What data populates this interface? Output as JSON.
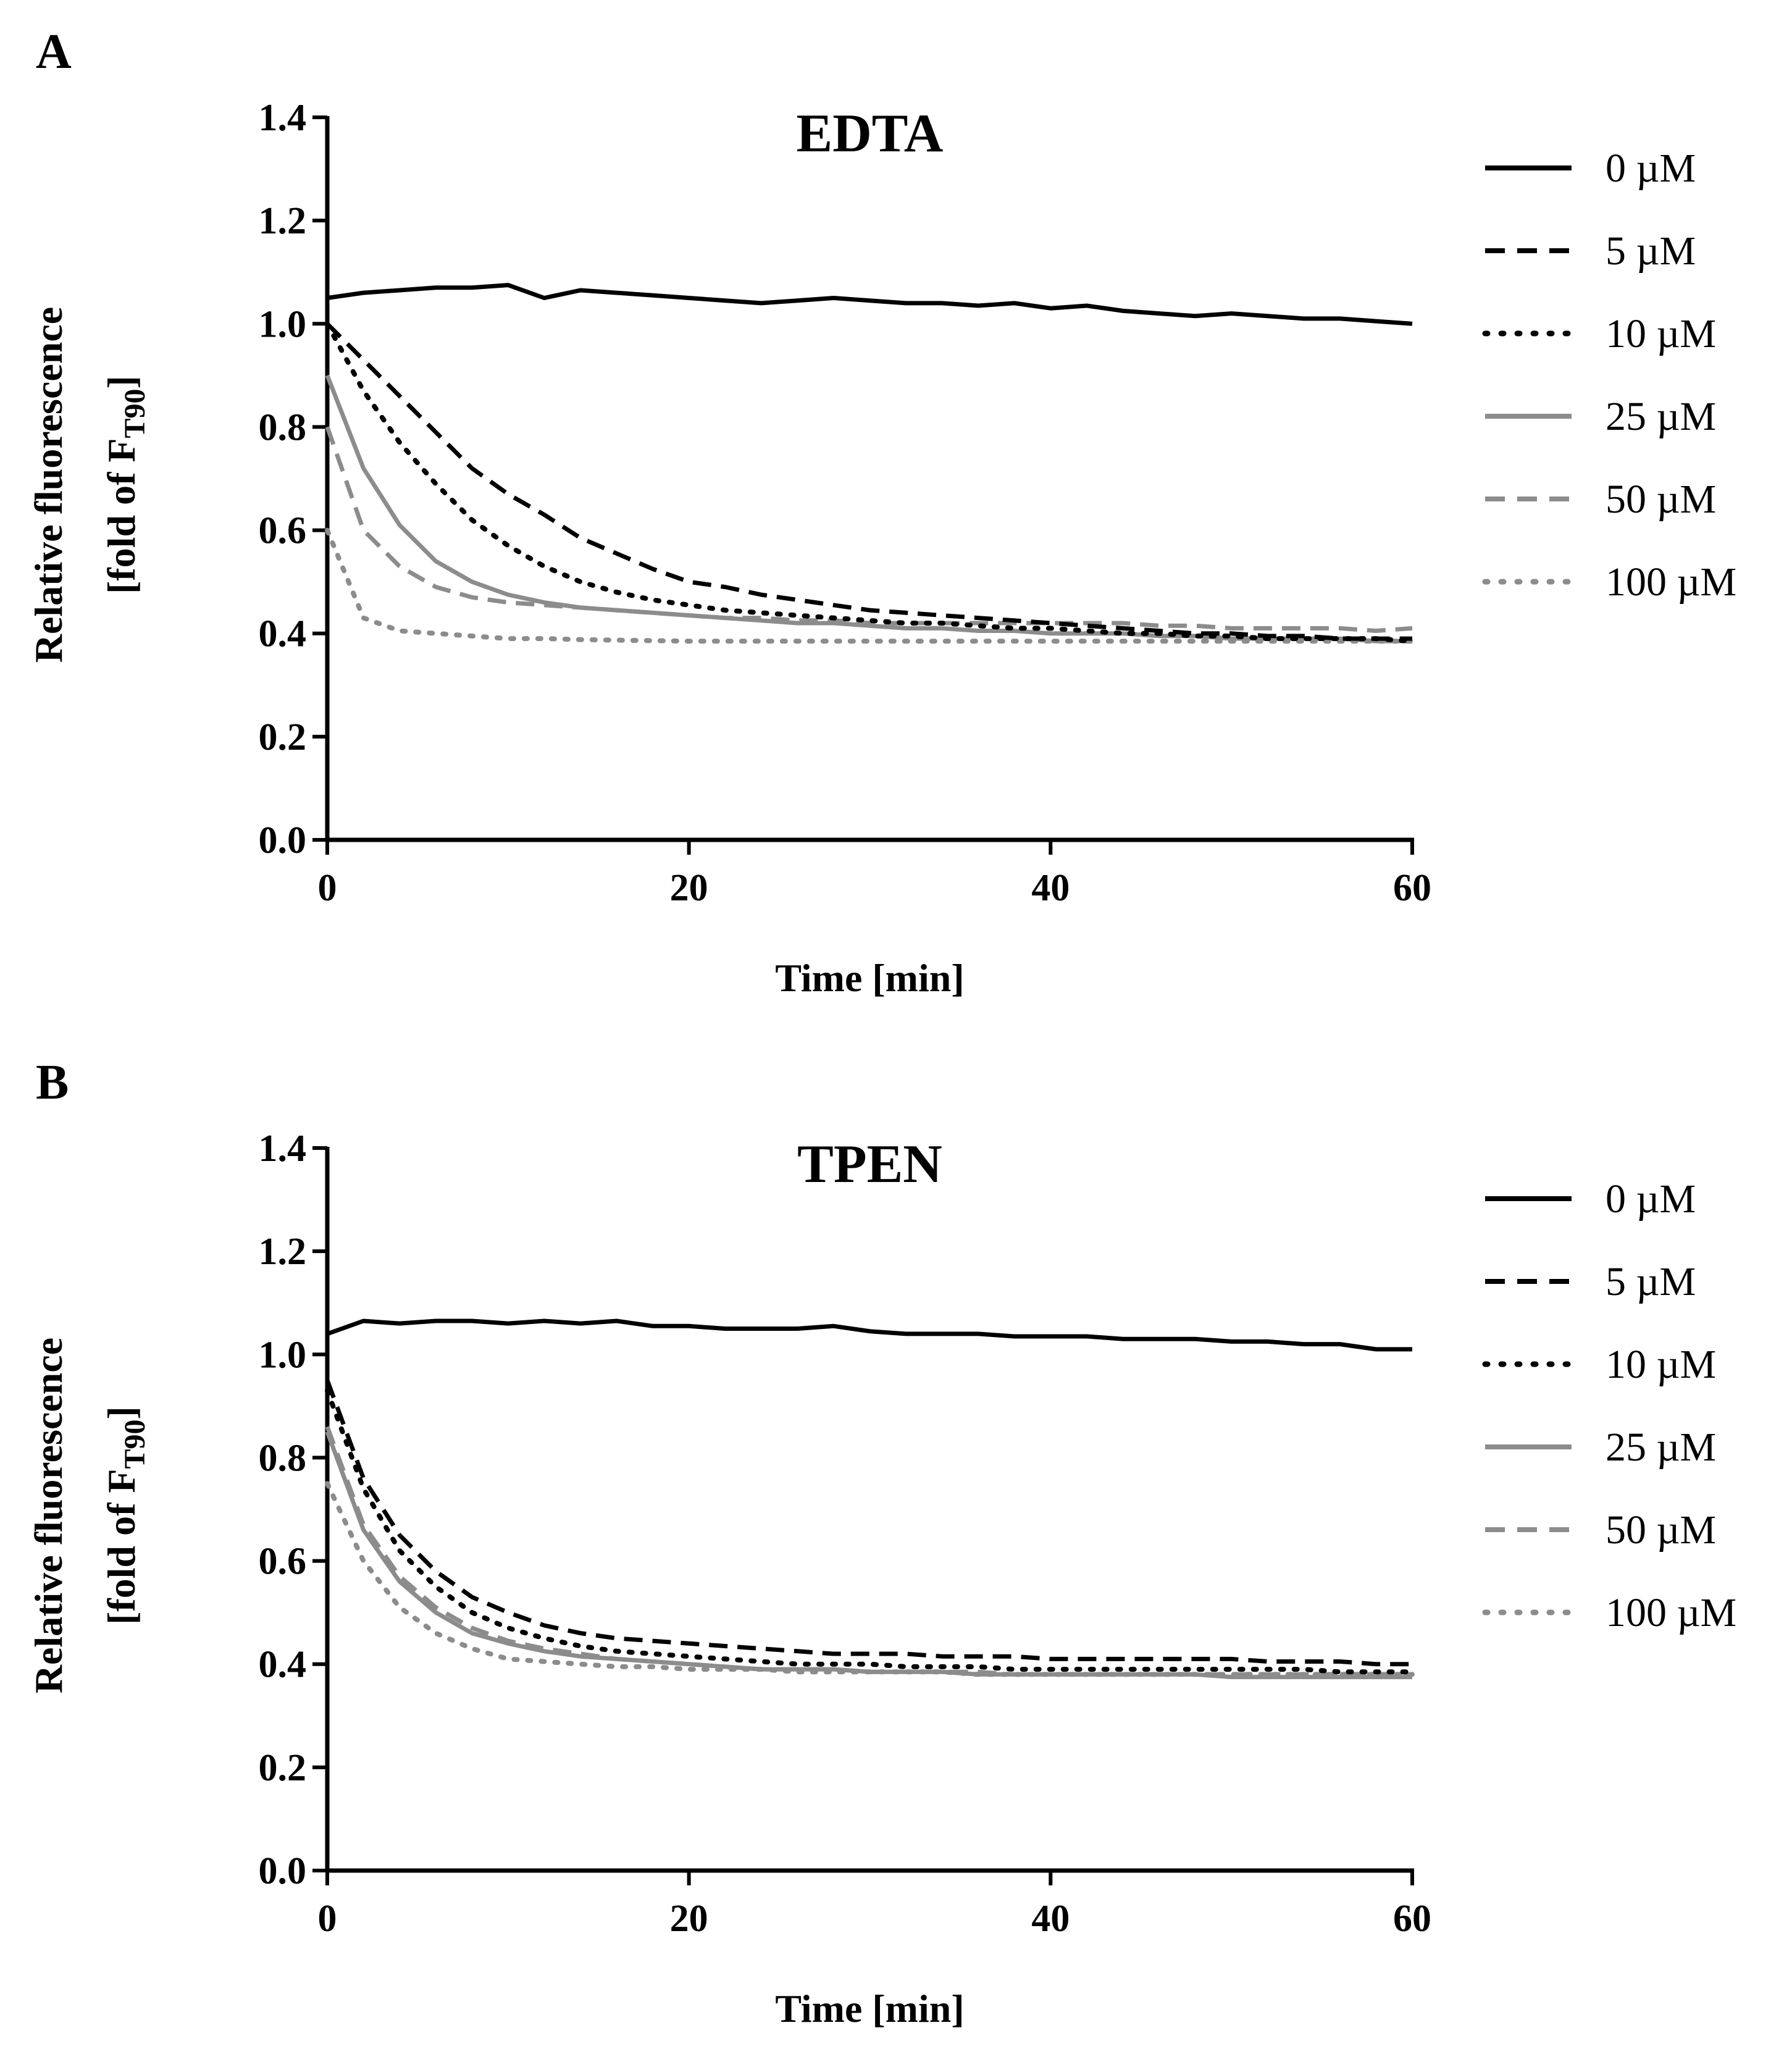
{
  "figure": {
    "panels": [
      {
        "letter": "A",
        "title": "EDTA"
      },
      {
        "letter": "B",
        "title": "TPEN"
      }
    ]
  },
  "chart_data": [
    {
      "type": "line",
      "panel": "A",
      "title": "EDTA",
      "xlabel": "Time [min]",
      "ylabel_line1": "Relative fluorescence",
      "ylabel_line2_prefix": "[fold of F",
      "ylabel_line2_subscript": "T90",
      "ylabel_line2_suffix": "]",
      "xlim": [
        0,
        60
      ],
      "ylim": [
        0,
        1.4
      ],
      "xticks": [
        0,
        20,
        40,
        60
      ],
      "xtick_labels": [
        "0",
        "20",
        "40",
        "60"
      ],
      "yticks": [
        0,
        0.2,
        0.4,
        0.6,
        0.8,
        1.0,
        1.2,
        1.4
      ],
      "ytick_labels": [
        "0.0",
        "0.2",
        "0.4",
        "0.6",
        "0.8",
        "1.0",
        "1.2",
        "1.4"
      ],
      "grid": false,
      "legend_position": "right",
      "x": [
        0,
        2,
        4,
        6,
        8,
        10,
        12,
        14,
        16,
        18,
        20,
        22,
        24,
        26,
        28,
        30,
        32,
        34,
        36,
        38,
        40,
        42,
        44,
        46,
        48,
        50,
        52,
        54,
        56,
        58,
        60
      ],
      "series": [
        {
          "name": "0 µM",
          "color": "#000000",
          "dash": "solid",
          "values": [
            1.05,
            1.06,
            1.065,
            1.07,
            1.07,
            1.075,
            1.05,
            1.065,
            1.06,
            1.055,
            1.05,
            1.045,
            1.04,
            1.045,
            1.05,
            1.045,
            1.04,
            1.04,
            1.035,
            1.04,
            1.03,
            1.035,
            1.025,
            1.02,
            1.015,
            1.02,
            1.015,
            1.01,
            1.01,
            1.005,
            1.0
          ]
        },
        {
          "name": "5 µM",
          "color": "#000000",
          "dash": "dash",
          "values": [
            1.0,
            0.93,
            0.86,
            0.79,
            0.72,
            0.67,
            0.63,
            0.585,
            0.555,
            0.525,
            0.5,
            0.49,
            0.475,
            0.465,
            0.455,
            0.445,
            0.44,
            0.435,
            0.43,
            0.425,
            0.42,
            0.415,
            0.41,
            0.405,
            0.4,
            0.4,
            0.395,
            0.395,
            0.39,
            0.39,
            0.39
          ]
        },
        {
          "name": "10 µM",
          "color": "#000000",
          "dash": "dot",
          "values": [
            1.0,
            0.87,
            0.77,
            0.69,
            0.62,
            0.57,
            0.53,
            0.5,
            0.48,
            0.465,
            0.455,
            0.445,
            0.44,
            0.435,
            0.43,
            0.425,
            0.42,
            0.42,
            0.415,
            0.41,
            0.41,
            0.405,
            0.4,
            0.4,
            0.395,
            0.395,
            0.39,
            0.39,
            0.39,
            0.39,
            0.385
          ]
        },
        {
          "name": "25 µM",
          "color": "#8c8c8c",
          "dash": "solid",
          "values": [
            0.9,
            0.72,
            0.61,
            0.54,
            0.5,
            0.475,
            0.46,
            0.45,
            0.445,
            0.44,
            0.435,
            0.43,
            0.425,
            0.42,
            0.42,
            0.415,
            0.41,
            0.41,
            0.405,
            0.405,
            0.4,
            0.4,
            0.4,
            0.395,
            0.395,
            0.39,
            0.39,
            0.39,
            0.39,
            0.385,
            0.385
          ]
        },
        {
          "name": "50 µM",
          "color": "#8c8c8c",
          "dash": "dash",
          "values": [
            0.8,
            0.6,
            0.53,
            0.49,
            0.47,
            0.46,
            0.455,
            0.45,
            0.445,
            0.44,
            0.435,
            0.43,
            0.43,
            0.425,
            0.425,
            0.42,
            0.42,
            0.42,
            0.42,
            0.42,
            0.42,
            0.42,
            0.42,
            0.415,
            0.415,
            0.41,
            0.41,
            0.41,
            0.41,
            0.405,
            0.41
          ]
        },
        {
          "name": "100 µM",
          "color": "#8c8c8c",
          "dash": "dot",
          "values": [
            0.6,
            0.43,
            0.405,
            0.4,
            0.395,
            0.39,
            0.39,
            0.388,
            0.387,
            0.386,
            0.385,
            0.385,
            0.385,
            0.385,
            0.385,
            0.385,
            0.385,
            0.385,
            0.385,
            0.385,
            0.385,
            0.385,
            0.385,
            0.385,
            0.385,
            0.385,
            0.385,
            0.385,
            0.385,
            0.385,
            0.385
          ]
        }
      ]
    },
    {
      "type": "line",
      "panel": "B",
      "title": "TPEN",
      "xlabel": "Time [min]",
      "ylabel_line1": "Relative fluorescence",
      "ylabel_line2_prefix": "[fold of F",
      "ylabel_line2_subscript": "T90",
      "ylabel_line2_suffix": "]",
      "xlim": [
        0,
        60
      ],
      "ylim": [
        0,
        1.4
      ],
      "xticks": [
        0,
        20,
        40,
        60
      ],
      "xtick_labels": [
        "0",
        "20",
        "40",
        "60"
      ],
      "yticks": [
        0,
        0.2,
        0.4,
        0.6,
        0.8,
        1.0,
        1.2,
        1.4
      ],
      "ytick_labels": [
        "0.0",
        "0.2",
        "0.4",
        "0.6",
        "0.8",
        "1.0",
        "1.2",
        "1.4"
      ],
      "grid": false,
      "legend_position": "right",
      "x": [
        0,
        2,
        4,
        6,
        8,
        10,
        12,
        14,
        16,
        18,
        20,
        22,
        24,
        26,
        28,
        30,
        32,
        34,
        36,
        38,
        40,
        42,
        44,
        46,
        48,
        50,
        52,
        54,
        56,
        58,
        60
      ],
      "series": [
        {
          "name": "0 µM",
          "color": "#000000",
          "dash": "solid",
          "values": [
            1.04,
            1.065,
            1.06,
            1.065,
            1.065,
            1.06,
            1.065,
            1.06,
            1.065,
            1.055,
            1.055,
            1.05,
            1.05,
            1.05,
            1.055,
            1.045,
            1.04,
            1.04,
            1.04,
            1.035,
            1.035,
            1.035,
            1.03,
            1.03,
            1.03,
            1.025,
            1.025,
            1.02,
            1.02,
            1.01,
            1.01
          ]
        },
        {
          "name": "5 µM",
          "color": "#000000",
          "dash": "dash",
          "values": [
            0.95,
            0.76,
            0.65,
            0.58,
            0.53,
            0.5,
            0.475,
            0.46,
            0.45,
            0.445,
            0.44,
            0.435,
            0.43,
            0.425,
            0.42,
            0.42,
            0.42,
            0.415,
            0.415,
            0.415,
            0.41,
            0.41,
            0.41,
            0.41,
            0.41,
            0.41,
            0.405,
            0.405,
            0.405,
            0.4,
            0.4
          ]
        },
        {
          "name": "10 µM",
          "color": "#000000",
          "dash": "dot",
          "values": [
            0.93,
            0.74,
            0.62,
            0.55,
            0.5,
            0.47,
            0.45,
            0.435,
            0.425,
            0.42,
            0.415,
            0.41,
            0.405,
            0.4,
            0.4,
            0.4,
            0.395,
            0.395,
            0.395,
            0.39,
            0.39,
            0.39,
            0.39,
            0.39,
            0.39,
            0.39,
            0.39,
            0.39,
            0.385,
            0.385,
            0.385
          ]
        },
        {
          "name": "25 µM",
          "color": "#8c8c8c",
          "dash": "solid",
          "values": [
            0.85,
            0.66,
            0.56,
            0.5,
            0.46,
            0.44,
            0.425,
            0.415,
            0.41,
            0.405,
            0.4,
            0.395,
            0.39,
            0.39,
            0.39,
            0.385,
            0.385,
            0.385,
            0.38,
            0.38,
            0.38,
            0.38,
            0.38,
            0.38,
            0.38,
            0.375,
            0.375,
            0.375,
            0.375,
            0.375,
            0.375
          ]
        },
        {
          "name": "50 µM",
          "color": "#8c8c8c",
          "dash": "dash",
          "values": [
            0.86,
            0.67,
            0.57,
            0.51,
            0.47,
            0.445,
            0.43,
            0.42,
            0.41,
            0.405,
            0.4,
            0.395,
            0.39,
            0.39,
            0.39,
            0.385,
            0.385,
            0.385,
            0.385,
            0.38,
            0.38,
            0.38,
            0.38,
            0.38,
            0.38,
            0.38,
            0.38,
            0.38,
            0.38,
            0.38,
            0.38
          ]
        },
        {
          "name": "100 µM",
          "color": "#8c8c8c",
          "dash": "dot",
          "values": [
            0.75,
            0.6,
            0.51,
            0.46,
            0.43,
            0.41,
            0.405,
            0.4,
            0.395,
            0.395,
            0.39,
            0.39,
            0.39,
            0.385,
            0.385,
            0.385,
            0.385,
            0.385,
            0.38,
            0.38,
            0.38,
            0.38,
            0.38,
            0.38,
            0.38,
            0.38,
            0.38,
            0.38,
            0.38,
            0.38,
            0.38
          ]
        }
      ]
    }
  ]
}
